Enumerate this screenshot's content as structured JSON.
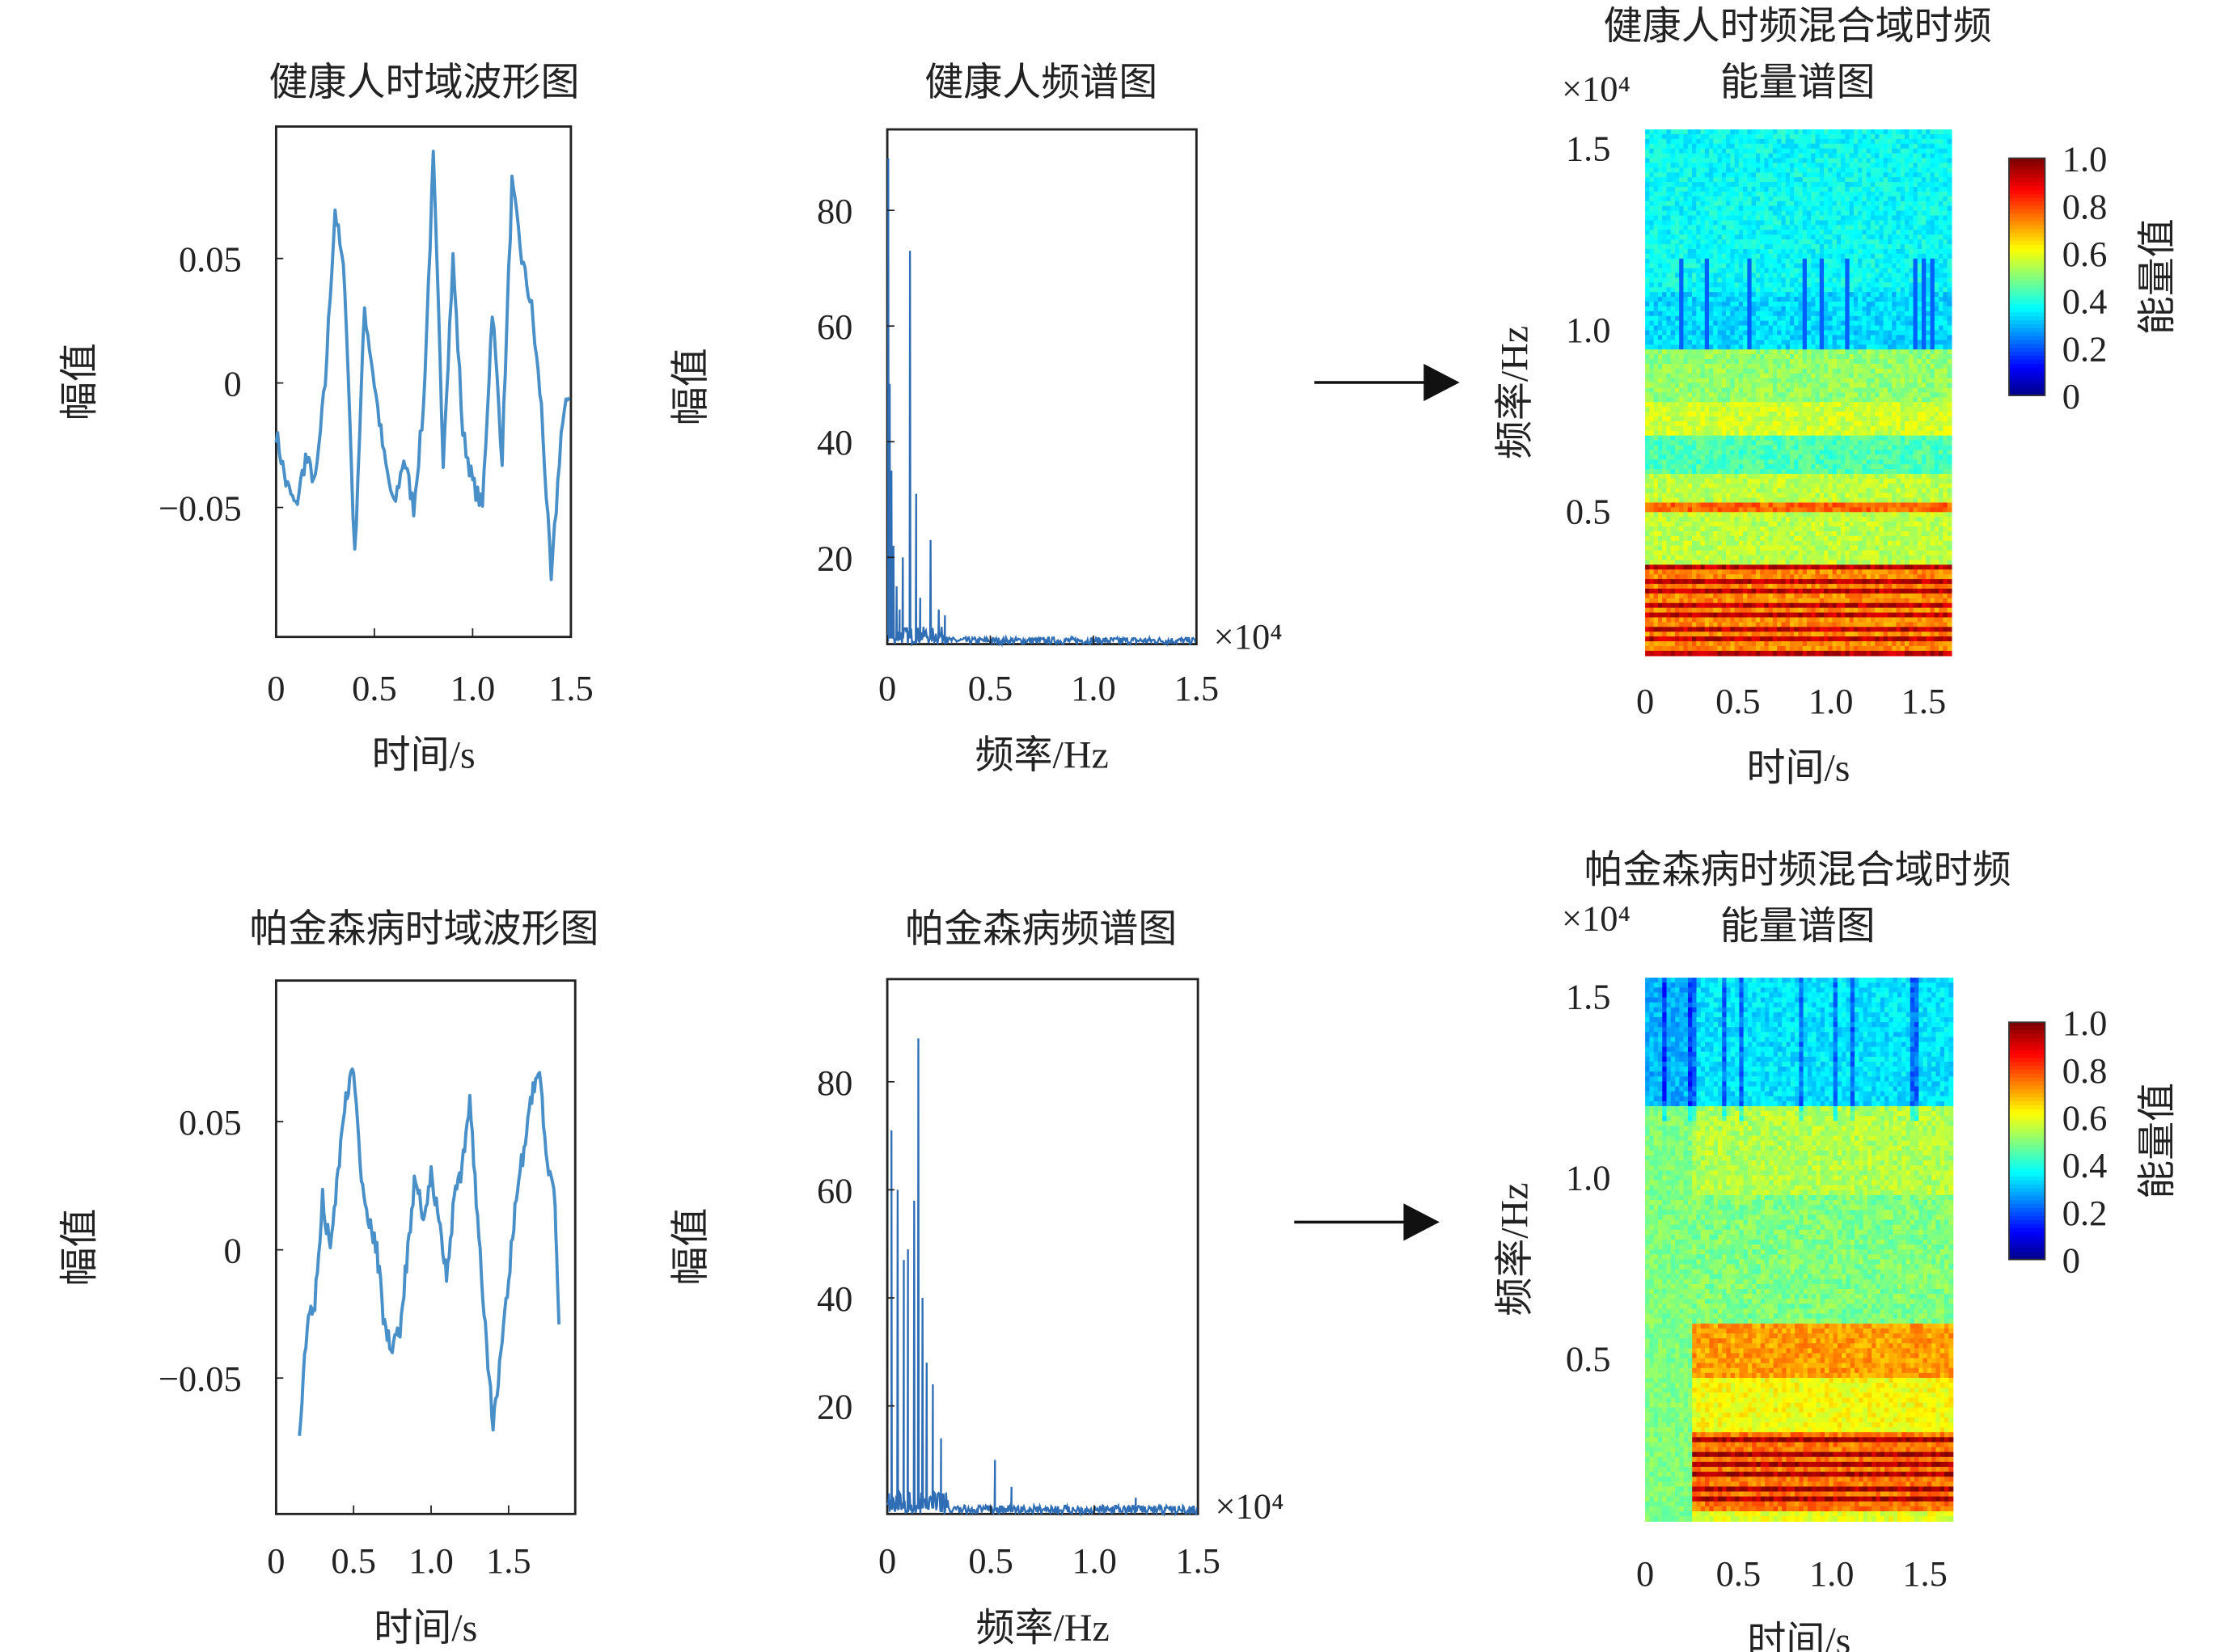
{
  "chart_data": [
    {
      "id": "healthy_wave",
      "type": "line",
      "title": "健康人时域波形图",
      "xlabel": "时间/s",
      "ylabel": "幅值",
      "xlim": [
        0,
        1.5
      ],
      "ylim": [
        -0.102,
        0.103
      ],
      "xticks": [
        "0",
        "0.5",
        "1.0",
        "1.5"
      ],
      "xtick_values": [
        0,
        0.5,
        1.0,
        1.5
      ],
      "yticks": [
        "0.05",
        "0",
        "−0.05"
      ],
      "ytick_values": [
        0.05,
        0,
        -0.05
      ],
      "color": "#4a90c8",
      "x": [
        0,
        0.05,
        0.1,
        0.15,
        0.2,
        0.25,
        0.3,
        0.35,
        0.4,
        0.45,
        0.5,
        0.55,
        0.6,
        0.65,
        0.7,
        0.75,
        0.8,
        0.85,
        0.9,
        0.95,
        1.0,
        1.05,
        1.1,
        1.15,
        1.2,
        1.25,
        1.3,
        1.35,
        1.4,
        1.45,
        1.5
      ],
      "y": [
        -0.02,
        -0.04,
        -0.05,
        -0.03,
        -0.04,
        0.0,
        0.07,
        0.04,
        -0.07,
        0.03,
        0.0,
        -0.03,
        -0.05,
        -0.03,
        -0.05,
        -0.01,
        0.09,
        -0.03,
        0.05,
        -0.02,
        -0.04,
        -0.05,
        0.03,
        -0.03,
        0.08,
        0.05,
        0.03,
        -0.01,
        -0.08,
        -0.02,
        0.0
      ]
    },
    {
      "id": "healthy_spec",
      "type": "line",
      "title": "健康人频谱图",
      "xlabel": "频率/Hz",
      "ylabel": "幅值",
      "x_multiplier": "×10⁴",
      "xlim": [
        0,
        1.5
      ],
      "ylim": [
        5,
        94
      ],
      "xticks": [
        "0",
        "0.5",
        "1.0",
        "1.5"
      ],
      "xtick_values": [
        0,
        0.5,
        1.0,
        1.5
      ],
      "yticks": [
        "80",
        "60",
        "40",
        "20"
      ],
      "ytick_values": [
        80,
        60,
        40,
        20
      ],
      "color": "#2f6db5",
      "peaks": [
        [
          0.005,
          89
        ],
        [
          0.012,
          50
        ],
        [
          0.02,
          35
        ],
        [
          0.03,
          22
        ],
        [
          0.045,
          15
        ],
        [
          0.06,
          11
        ],
        [
          0.075,
          20
        ],
        [
          0.11,
          73
        ],
        [
          0.14,
          31
        ],
        [
          0.16,
          13
        ],
        [
          0.21,
          23
        ],
        [
          0.25,
          11
        ],
        [
          0.28,
          10
        ]
      ],
      "noise_floor": 6.5
    },
    {
      "id": "healthy_tf",
      "type": "heatmap",
      "title": "健康人时频混合域时频",
      "title2": "能量谱图",
      "xlabel": "时间/s",
      "ylabel": "频率/Hz",
      "y_multiplier": "×10⁴",
      "xlim": [
        0,
        1.65
      ],
      "ylim": [
        0.1,
        1.55
      ],
      "xticks": [
        "0",
        "0.5",
        "1.0",
        "1.5"
      ],
      "xtick_values": [
        0,
        0.5,
        1.0,
        1.5
      ],
      "yticks": [
        "1.5",
        "1.0",
        "0.5"
      ],
      "ytick_values": [
        1.5,
        1.0,
        0.5
      ],
      "colormap": "jet",
      "colorbar_label": "能量值",
      "colorbar_ticks": [
        "1.0",
        "0.8",
        "0.6",
        "0.4",
        "0.2",
        "0"
      ],
      "colorbar_values": [
        1.0,
        0.8,
        0.6,
        0.4,
        0.2,
        0
      ],
      "onset_time": 0,
      "bands": [
        [
          1.1,
          1.55,
          0.38
        ],
        [
          0.95,
          1.1,
          0.34
        ],
        [
          0.8,
          0.95,
          0.52
        ],
        [
          0.7,
          0.8,
          0.58
        ],
        [
          0.6,
          0.7,
          0.45
        ],
        [
          0.52,
          0.6,
          0.56
        ],
        [
          0.49,
          0.52,
          0.78
        ],
        [
          0.35,
          0.49,
          0.56
        ],
        [
          0.1,
          0.35,
          0.86
        ]
      ]
    },
    {
      "id": "pd_wave",
      "type": "line",
      "title": "帕金森病时域波形图",
      "xlabel": "时间/s",
      "ylabel": "幅值",
      "xlim": [
        0,
        1.93
      ],
      "ylim": [
        -0.103,
        0.105
      ],
      "xticks": [
        "0",
        "0.5",
        "1.0",
        "1.5"
      ],
      "xtick_values": [
        0,
        0.5,
        1.0,
        1.5
      ],
      "yticks": [
        "0.05",
        "0",
        "−0.05"
      ],
      "ytick_values": [
        0.05,
        0,
        -0.05
      ],
      "color": "#4a90c8",
      "x": [
        0.15,
        0.2,
        0.25,
        0.3,
        0.35,
        0.4,
        0.45,
        0.5,
        0.55,
        0.6,
        0.65,
        0.7,
        0.75,
        0.8,
        0.85,
        0.9,
        0.95,
        1.0,
        1.05,
        1.1,
        1.15,
        1.2,
        1.25,
        1.3,
        1.35,
        1.4,
        1.45,
        1.5,
        1.55,
        1.6,
        1.65,
        1.7,
        1.75,
        1.8,
        1.83
      ],
      "y": [
        -0.07,
        -0.03,
        -0.02,
        0.02,
        0.0,
        0.03,
        0.06,
        0.07,
        0.03,
        0.01,
        0.0,
        -0.03,
        -0.04,
        -0.03,
        0.0,
        0.03,
        0.01,
        0.03,
        0.01,
        -0.01,
        0.02,
        0.03,
        0.06,
        0.01,
        -0.03,
        -0.07,
        -0.04,
        -0.01,
        0.02,
        0.04,
        0.06,
        0.07,
        0.03,
        0.02,
        -0.04
      ]
    },
    {
      "id": "pd_spec",
      "type": "line",
      "title": "帕金森病频谱图",
      "xlabel": "频率/Hz",
      "ylabel": "幅值",
      "x_multiplier": "×10⁴",
      "xlim": [
        0,
        1.5
      ],
      "ylim": [
        0,
        99
      ],
      "xticks": [
        "0",
        "0.5",
        "1.0",
        "1.5"
      ],
      "xtick_values": [
        0,
        0.5,
        1.0,
        1.5
      ],
      "yticks": [
        "80",
        "60",
        "40",
        "20"
      ],
      "ytick_values": [
        80,
        60,
        40,
        20
      ],
      "color": "#2f6db5",
      "peaks": [
        [
          0.02,
          71
        ],
        [
          0.05,
          60
        ],
        [
          0.08,
          47
        ],
        [
          0.1,
          49
        ],
        [
          0.13,
          58
        ],
        [
          0.15,
          88
        ],
        [
          0.17,
          40
        ],
        [
          0.19,
          28
        ],
        [
          0.22,
          24
        ],
        [
          0.26,
          14
        ],
        [
          0.52,
          10
        ],
        [
          0.6,
          5
        ],
        [
          1.2,
          3
        ]
      ],
      "noise_floor": 2
    },
    {
      "id": "pd_tf",
      "type": "heatmap",
      "title": "帕金森病时频混合域时频",
      "title2": "能量谱图",
      "xlabel": "时间/s",
      "ylabel": "频率/Hz",
      "y_multiplier": "×10⁴",
      "xlim": [
        0,
        1.65
      ],
      "ylim": [
        0.05,
        1.55
      ],
      "xticks": [
        "0",
        "0.5",
        "1.0",
        "1.5"
      ],
      "xtick_values": [
        0,
        0.5,
        1.0,
        1.5
      ],
      "yticks": [
        "1.5",
        "1.0",
        "0.5"
      ],
      "ytick_values": [
        1.5,
        1.0,
        0.5
      ],
      "colormap": "jet",
      "colorbar_label": "能量值",
      "colorbar_ticks": [
        "1.0",
        "0.8",
        "0.6",
        "0.4",
        "0.2",
        "0"
      ],
      "colorbar_values": [
        1.0,
        0.8,
        0.6,
        0.4,
        0.2,
        0
      ],
      "onset_time": 0.25,
      "bands": [
        [
          1.2,
          1.55,
          0.35
        ],
        [
          0.95,
          1.2,
          0.55
        ],
        [
          0.6,
          0.95,
          0.5
        ],
        [
          0.45,
          0.6,
          0.72
        ],
        [
          0.3,
          0.45,
          0.62
        ],
        [
          0.08,
          0.3,
          0.88
        ],
        [
          0.05,
          0.08,
          0.6
        ]
      ]
    }
  ]
}
